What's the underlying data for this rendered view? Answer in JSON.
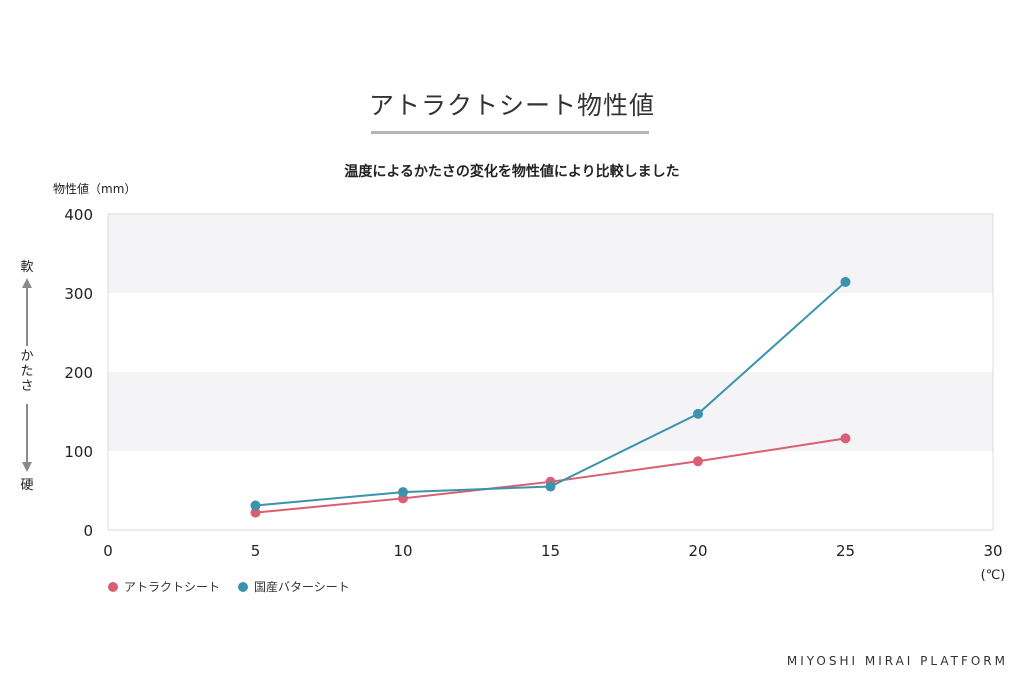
{
  "page": {
    "title": "アトラクトシート物性値",
    "brand": "MIYOSHI MIRAI PLATFORM"
  },
  "chart_data": {
    "type": "line",
    "title": "温度によるかたさの変化を物性値により比較しました",
    "ylabel": "物性値（mm）",
    "xunit": "(℃)",
    "xlim": [
      0,
      30
    ],
    "ylim": [
      0,
      400
    ],
    "xticks": [
      0,
      5,
      10,
      15,
      20,
      25,
      30
    ],
    "yticks": [
      0,
      100,
      200,
      300,
      400
    ],
    "side_label": {
      "top": "軟",
      "middle": "かたさ",
      "bottom": "硬"
    },
    "grid": "alternating horizontal bands",
    "legend_position": "bottom-left",
    "series": [
      {
        "name": "アトラクトシート",
        "color": "#d95f72",
        "x": [
          5,
          10,
          15,
          20,
          25
        ],
        "y": [
          22,
          40,
          61,
          87,
          116
        ]
      },
      {
        "name": "国産バターシート",
        "color": "#3a94ad",
        "x": [
          5,
          10,
          15,
          20,
          25
        ],
        "y": [
          31,
          48,
          55,
          147,
          314
        ]
      }
    ]
  }
}
